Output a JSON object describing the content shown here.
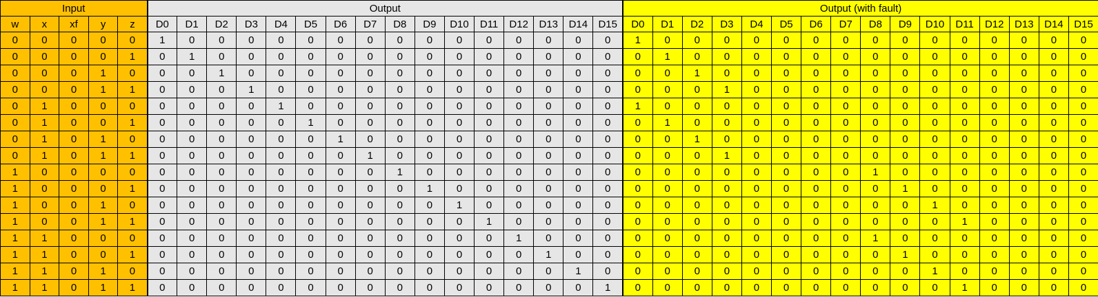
{
  "groups": {
    "input": "Input",
    "output": "Output",
    "fault": "Output (with fault)"
  },
  "input_headers": [
    "w",
    "x",
    "xf",
    "y",
    "z"
  ],
  "output_headers": [
    "D0",
    "D1",
    "D2",
    "D3",
    "D4",
    "D5",
    "D6",
    "D7",
    "D8",
    "D9",
    "D10",
    "D11",
    "D12",
    "D13",
    "D14",
    "D15"
  ],
  "fault_headers": [
    "D0",
    "D1",
    "D2",
    "D3",
    "D4",
    "D5",
    "D6",
    "D7",
    "D8",
    "D9",
    "D10",
    "D11",
    "D12",
    "D13",
    "D14",
    "D15"
  ],
  "rows": [
    {
      "input": [
        0,
        0,
        0,
        0,
        0
      ],
      "output": [
        1,
        0,
        0,
        0,
        0,
        0,
        0,
        0,
        0,
        0,
        0,
        0,
        0,
        0,
        0,
        0
      ],
      "fault": [
        1,
        0,
        0,
        0,
        0,
        0,
        0,
        0,
        0,
        0,
        0,
        0,
        0,
        0,
        0,
        0
      ]
    },
    {
      "input": [
        0,
        0,
        0,
        0,
        1
      ],
      "output": [
        0,
        1,
        0,
        0,
        0,
        0,
        0,
        0,
        0,
        0,
        0,
        0,
        0,
        0,
        0,
        0
      ],
      "fault": [
        0,
        1,
        0,
        0,
        0,
        0,
        0,
        0,
        0,
        0,
        0,
        0,
        0,
        0,
        0,
        0
      ]
    },
    {
      "input": [
        0,
        0,
        0,
        1,
        0
      ],
      "output": [
        0,
        0,
        1,
        0,
        0,
        0,
        0,
        0,
        0,
        0,
        0,
        0,
        0,
        0,
        0,
        0
      ],
      "fault": [
        0,
        0,
        1,
        0,
        0,
        0,
        0,
        0,
        0,
        0,
        0,
        0,
        0,
        0,
        0,
        0
      ]
    },
    {
      "input": [
        0,
        0,
        0,
        1,
        1
      ],
      "output": [
        0,
        0,
        0,
        1,
        0,
        0,
        0,
        0,
        0,
        0,
        0,
        0,
        0,
        0,
        0,
        0
      ],
      "fault": [
        0,
        0,
        0,
        1,
        0,
        0,
        0,
        0,
        0,
        0,
        0,
        0,
        0,
        0,
        0,
        0
      ]
    },
    {
      "input": [
        0,
        1,
        0,
        0,
        0
      ],
      "output": [
        0,
        0,
        0,
        0,
        1,
        0,
        0,
        0,
        0,
        0,
        0,
        0,
        0,
        0,
        0,
        0
      ],
      "fault": [
        1,
        0,
        0,
        0,
        0,
        0,
        0,
        0,
        0,
        0,
        0,
        0,
        0,
        0,
        0,
        0
      ]
    },
    {
      "input": [
        0,
        1,
        0,
        0,
        1
      ],
      "output": [
        0,
        0,
        0,
        0,
        0,
        1,
        0,
        0,
        0,
        0,
        0,
        0,
        0,
        0,
        0,
        0
      ],
      "fault": [
        0,
        1,
        0,
        0,
        0,
        0,
        0,
        0,
        0,
        0,
        0,
        0,
        0,
        0,
        0,
        0
      ]
    },
    {
      "input": [
        0,
        1,
        0,
        1,
        0
      ],
      "output": [
        0,
        0,
        0,
        0,
        0,
        0,
        1,
        0,
        0,
        0,
        0,
        0,
        0,
        0,
        0,
        0
      ],
      "fault": [
        0,
        0,
        1,
        0,
        0,
        0,
        0,
        0,
        0,
        0,
        0,
        0,
        0,
        0,
        0,
        0
      ]
    },
    {
      "input": [
        0,
        1,
        0,
        1,
        1
      ],
      "output": [
        0,
        0,
        0,
        0,
        0,
        0,
        0,
        1,
        0,
        0,
        0,
        0,
        0,
        0,
        0,
        0
      ],
      "fault": [
        0,
        0,
        0,
        1,
        0,
        0,
        0,
        0,
        0,
        0,
        0,
        0,
        0,
        0,
        0,
        0
      ]
    },
    {
      "input": [
        1,
        0,
        0,
        0,
        0
      ],
      "output": [
        0,
        0,
        0,
        0,
        0,
        0,
        0,
        0,
        1,
        0,
        0,
        0,
        0,
        0,
        0,
        0
      ],
      "fault": [
        0,
        0,
        0,
        0,
        0,
        0,
        0,
        0,
        1,
        0,
        0,
        0,
        0,
        0,
        0,
        0
      ]
    },
    {
      "input": [
        1,
        0,
        0,
        0,
        1
      ],
      "output": [
        0,
        0,
        0,
        0,
        0,
        0,
        0,
        0,
        0,
        1,
        0,
        0,
        0,
        0,
        0,
        0
      ],
      "fault": [
        0,
        0,
        0,
        0,
        0,
        0,
        0,
        0,
        0,
        1,
        0,
        0,
        0,
        0,
        0,
        0
      ]
    },
    {
      "input": [
        1,
        0,
        0,
        1,
        0
      ],
      "output": [
        0,
        0,
        0,
        0,
        0,
        0,
        0,
        0,
        0,
        0,
        1,
        0,
        0,
        0,
        0,
        0
      ],
      "fault": [
        0,
        0,
        0,
        0,
        0,
        0,
        0,
        0,
        0,
        0,
        1,
        0,
        0,
        0,
        0,
        0
      ]
    },
    {
      "input": [
        1,
        0,
        0,
        1,
        1
      ],
      "output": [
        0,
        0,
        0,
        0,
        0,
        0,
        0,
        0,
        0,
        0,
        0,
        1,
        0,
        0,
        0,
        0
      ],
      "fault": [
        0,
        0,
        0,
        0,
        0,
        0,
        0,
        0,
        0,
        0,
        0,
        1,
        0,
        0,
        0,
        0
      ]
    },
    {
      "input": [
        1,
        1,
        0,
        0,
        0
      ],
      "output": [
        0,
        0,
        0,
        0,
        0,
        0,
        0,
        0,
        0,
        0,
        0,
        0,
        1,
        0,
        0,
        0
      ],
      "fault": [
        0,
        0,
        0,
        0,
        0,
        0,
        0,
        0,
        1,
        0,
        0,
        0,
        0,
        0,
        0,
        0
      ]
    },
    {
      "input": [
        1,
        1,
        0,
        0,
        1
      ],
      "output": [
        0,
        0,
        0,
        0,
        0,
        0,
        0,
        0,
        0,
        0,
        0,
        0,
        0,
        1,
        0,
        0
      ],
      "fault": [
        0,
        0,
        0,
        0,
        0,
        0,
        0,
        0,
        0,
        1,
        0,
        0,
        0,
        0,
        0,
        0
      ]
    },
    {
      "input": [
        1,
        1,
        0,
        1,
        0
      ],
      "output": [
        0,
        0,
        0,
        0,
        0,
        0,
        0,
        0,
        0,
        0,
        0,
        0,
        0,
        0,
        1,
        0
      ],
      "fault": [
        0,
        0,
        0,
        0,
        0,
        0,
        0,
        0,
        0,
        0,
        1,
        0,
        0,
        0,
        0,
        0
      ]
    },
    {
      "input": [
        1,
        1,
        0,
        1,
        1
      ],
      "output": [
        0,
        0,
        0,
        0,
        0,
        0,
        0,
        0,
        0,
        0,
        0,
        0,
        0,
        0,
        0,
        1
      ],
      "fault": [
        0,
        0,
        0,
        0,
        0,
        0,
        0,
        0,
        0,
        0,
        0,
        1,
        0,
        0,
        0,
        0
      ]
    }
  ]
}
